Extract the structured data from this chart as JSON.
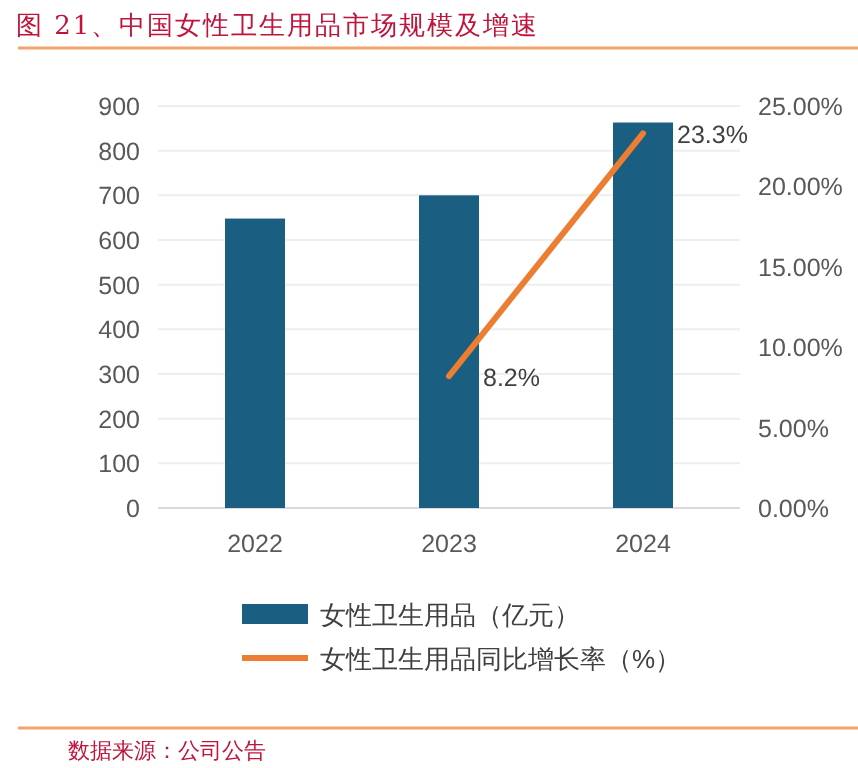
{
  "chart_data": {
    "type": "bar",
    "title": "图 21、中国女性卫生用品市场规模及增速",
    "annotations": [
      "数据来源：公司公告"
    ],
    "categories": [
      "2022",
      "2023",
      "2024"
    ],
    "series": [
      {
        "name": "女性卫生用品（亿元）",
        "color": "#1a5e82",
        "values": [
          648,
          700,
          863
        ]
      },
      {
        "name": "女性卫生用品同比增长率（%）",
        "type": "line",
        "axis": "y2",
        "color": "#ed7d31",
        "values": [
          null,
          8.2,
          23.3
        ],
        "value_labels": [
          null,
          "8.2%",
          "23.3%"
        ]
      }
    ],
    "ylim": [
      0,
      900
    ],
    "yticks": [
      0,
      100,
      200,
      300,
      400,
      500,
      600,
      700,
      800,
      900
    ],
    "y2lim": [
      0,
      25
    ],
    "y2ticks": [
      {
        "value": 0,
        "label": "0.00%"
      },
      {
        "value": 5,
        "label": "5.00%"
      },
      {
        "value": 10,
        "label": "10.00%"
      },
      {
        "value": 15,
        "label": "15.00%"
      },
      {
        "value": 20,
        "label": "20.00%"
      },
      {
        "value": 25,
        "label": "25.00%"
      }
    ],
    "grid": "y",
    "legend": "bottom"
  }
}
